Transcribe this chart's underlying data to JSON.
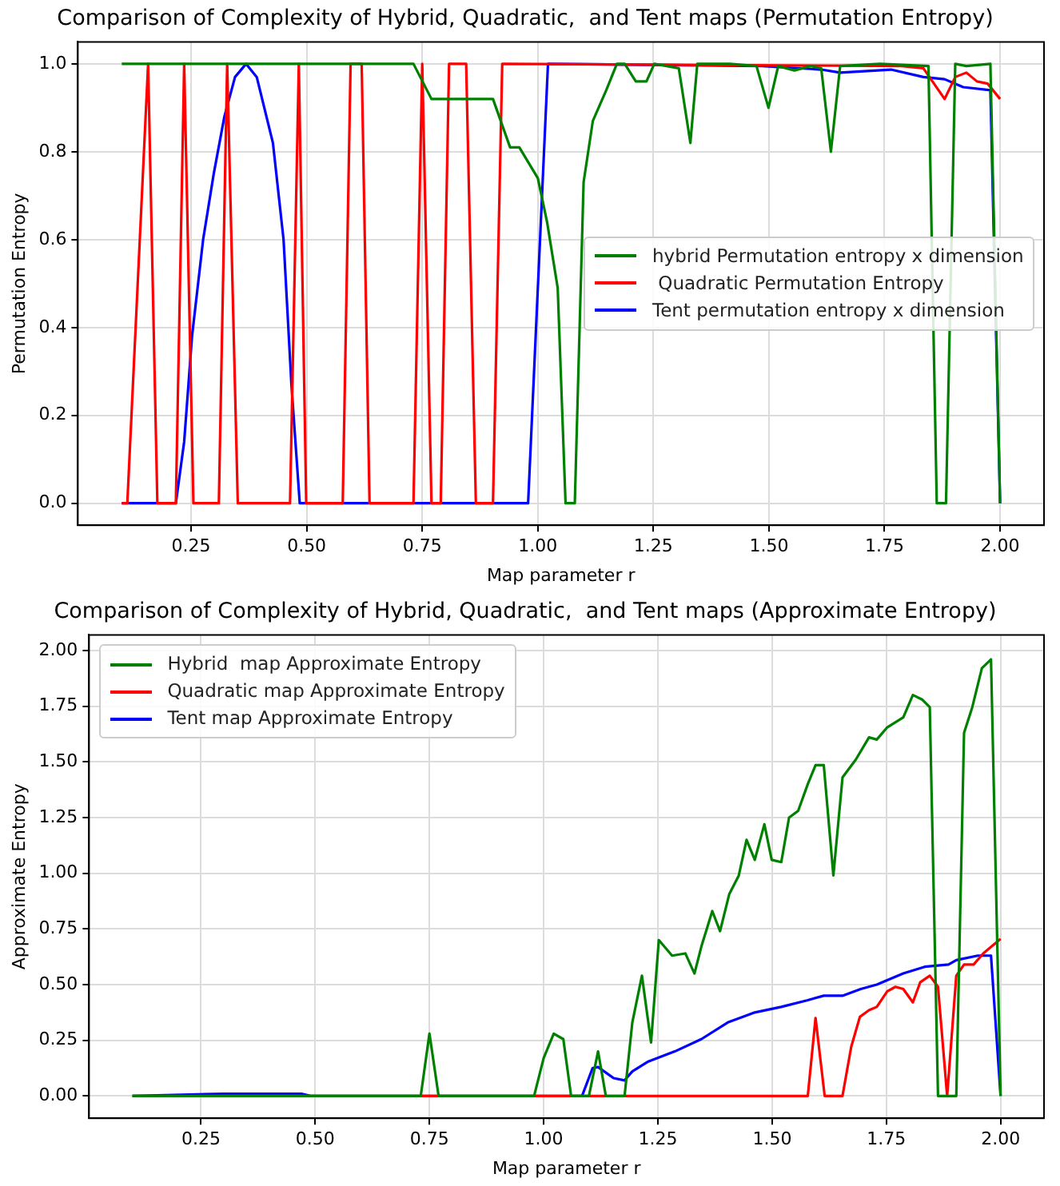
{
  "chart_data": [
    {
      "type": "line",
      "title": "Comparison of Complexity of Hybrid, Quadratic,  and Tent maps (Permutation Entropy)",
      "xlabel": "Map parameter r",
      "ylabel": "Permutation Entropy",
      "xlim": [
        0.005,
        2.095
      ],
      "xticks": [
        {
          "value": 0.25,
          "label": "0.25"
        },
        {
          "value": 0.5,
          "label": "0.50"
        },
        {
          "value": 0.75,
          "label": "0.75"
        },
        {
          "value": 1,
          "label": "1.00"
        },
        {
          "value": 1.25,
          "label": "1.25"
        },
        {
          "value": 1.5,
          "label": "1.50"
        },
        {
          "value": 1.75,
          "label": "1.75"
        },
        {
          "value": 2,
          "label": "2.00"
        }
      ],
      "ylim": [
        -0.05,
        1.05
      ],
      "yticks": [
        {
          "value": 0,
          "label": "0.0"
        },
        {
          "value": 0.2,
          "label": "0.2"
        },
        {
          "value": 0.4,
          "label": "0.4"
        },
        {
          "value": 0.6,
          "label": "0.6"
        },
        {
          "value": 0.8,
          "label": "0.8"
        },
        {
          "value": 1,
          "label": "1.0"
        }
      ],
      "grid": true,
      "legend": "center right",
      "series": [
        {
          "name": "hybrid Permutation entropy x dimension",
          "color": "#008000",
          "x": [
            0.1,
            0.731,
            0.77,
            0.903,
            0.94,
            0.96,
            1.0,
            1.02,
            1.043,
            1.06,
            1.08,
            1.099,
            1.119,
            1.148,
            1.171,
            1.188,
            1.212,
            1.235,
            1.252,
            1.305,
            1.33,
            1.345,
            1.415,
            1.473,
            1.499,
            1.52,
            1.555,
            1.59,
            1.613,
            1.634,
            1.654,
            1.74,
            1.845,
            1.863,
            1.883,
            1.903,
            1.927,
            1.979,
            2.0
          ],
          "values": [
            1.0,
            1.0,
            0.92,
            0.92,
            0.81,
            0.81,
            0.74,
            0.64,
            0.49,
            0,
            0,
            0.73,
            0.87,
            0.94,
            1.0,
            1.0,
            0.96,
            0.96,
            1.0,
            0.99,
            0.82,
            1.0,
            1.0,
            0.995,
            0.9,
            0.995,
            0.985,
            0.995,
            0.99,
            0.8,
            0.995,
            1.0,
            0.995,
            0,
            0,
            1.0,
            0.995,
            1.0,
            0
          ]
        },
        {
          "name": " Quadratic Permutation Entropy",
          "color": "#ff0000",
          "x": [
            0.1,
            0.112,
            0.157,
            0.177,
            0.217,
            0.235,
            0.255,
            0.31,
            0.328,
            0.351,
            0.464,
            0.483,
            0.499,
            0.578,
            0.595,
            0.619,
            0.636,
            0.731,
            0.75,
            0.77,
            0.79,
            0.808,
            0.845,
            0.866,
            0.903,
            0.923,
            1.787,
            1.834,
            1.88,
            1.903,
            1.927,
            1.95,
            1.973,
            2.0
          ],
          "values": [
            0,
            0,
            1,
            0,
            0,
            1,
            0,
            0,
            1,
            0,
            0,
            1,
            0,
            0,
            1,
            1,
            0,
            0,
            1,
            0,
            0,
            1,
            1,
            0,
            0,
            1,
            0.995,
            0.99,
            0.92,
            0.97,
            0.98,
            0.96,
            0.955,
            0.92
          ]
        },
        {
          "name": "Tent permutation entropy x dimension",
          "color": "#0000ff",
          "x": [
            0.1,
            0.217,
            0.235,
            0.252,
            0.276,
            0.299,
            0.322,
            0.345,
            0.369,
            0.392,
            0.427,
            0.45,
            0.467,
            0.485,
            0.979,
            1.022,
            1.485,
            1.613,
            1.654,
            1.764,
            1.834,
            1.88,
            1.92,
            1.979,
            2.0
          ],
          "values": [
            0,
            0,
            0.14,
            0.38,
            0.6,
            0.75,
            0.88,
            0.97,
            1.0,
            0.97,
            0.82,
            0.6,
            0.27,
            0,
            0,
            1.0,
            0.995,
            0.987,
            0.98,
            0.987,
            0.97,
            0.965,
            0.947,
            0.94,
            0
          ]
        }
      ]
    },
    {
      "type": "line",
      "title": "Comparison of Complexity of Hybrid, Quadratic,  and Tent maps (Approximate Entropy)",
      "xlabel": "Map parameter r",
      "ylabel": "Approximate Entropy",
      "xlim": [
        0.005,
        2.095
      ],
      "xticks": [
        {
          "value": 0.25,
          "label": "0.25"
        },
        {
          "value": 0.5,
          "label": "0.50"
        },
        {
          "value": 0.75,
          "label": "0.75"
        },
        {
          "value": 1,
          "label": "1.00"
        },
        {
          "value": 1.25,
          "label": "1.25"
        },
        {
          "value": 1.5,
          "label": "1.50"
        },
        {
          "value": 1.75,
          "label": "1.75"
        },
        {
          "value": 2,
          "label": "2.00"
        }
      ],
      "ylim": [
        -0.1,
        2.07
      ],
      "yticks": [
        {
          "value": 0,
          "label": "0.00"
        },
        {
          "value": 0.25,
          "label": "0.25"
        },
        {
          "value": 0.5,
          "label": "0.50"
        },
        {
          "value": 0.75,
          "label": "0.75"
        },
        {
          "value": 1,
          "label": "1.00"
        },
        {
          "value": 1.25,
          "label": "1.25"
        },
        {
          "value": 1.5,
          "label": "1.50"
        },
        {
          "value": 1.75,
          "label": "1.75"
        },
        {
          "value": 2,
          "label": "2.00"
        }
      ],
      "grid": true,
      "legend": "top left",
      "series": [
        {
          "name": "Hybrid  map Approximate Entropy",
          "color": "#008000",
          "x": [
            0.1,
            0.731,
            0.75,
            0.77,
            0.979,
            1.0,
            1.022,
            1.043,
            1.06,
            1.099,
            1.119,
            1.136,
            1.177,
            1.194,
            1.215,
            1.235,
            1.252,
            1.281,
            1.31,
            1.33,
            1.345,
            1.369,
            1.386,
            1.406,
            1.427,
            1.444,
            1.462,
            1.483,
            1.499,
            1.52,
            1.537,
            1.557,
            1.578,
            1.595,
            1.613,
            1.634,
            1.654,
            1.683,
            1.712,
            1.729,
            1.752,
            1.787,
            1.808,
            1.828,
            1.845,
            1.863,
            1.903,
            1.92,
            1.938,
            1.959,
            1.979,
            2.0
          ],
          "values": [
            0,
            0,
            0.28,
            0,
            0,
            0.17,
            0.28,
            0.255,
            0,
            0,
            0.2,
            0,
            0,
            0.33,
            0.54,
            0.24,
            0.7,
            0.63,
            0.64,
            0.55,
            0.67,
            0.83,
            0.74,
            0.905,
            0.99,
            1.15,
            1.06,
            1.22,
            1.06,
            1.05,
            1.25,
            1.28,
            1.4,
            1.485,
            1.485,
            0.99,
            1.43,
            1.51,
            1.61,
            1.6,
            1.655,
            1.7,
            1.8,
            1.78,
            1.745,
            0,
            0,
            1.63,
            1.745,
            1.92,
            1.96,
            0
          ]
        },
        {
          "name": "Quadratic map Approximate Entropy",
          "color": "#ff0000",
          "x": [
            0.1,
            1.578,
            1.595,
            1.615,
            1.654,
            1.673,
            1.692,
            1.712,
            1.729,
            1.752,
            1.77,
            1.787,
            1.808,
            1.824,
            1.845,
            1.863,
            1.883,
            1.903,
            1.92,
            1.941,
            1.962,
            2.0
          ],
          "values": [
            0,
            0,
            0.35,
            0,
            0,
            0.22,
            0.355,
            0.385,
            0.4,
            0.47,
            0.49,
            0.48,
            0.42,
            0.51,
            0.54,
            0.49,
            0,
            0.54,
            0.59,
            0.59,
            0.64,
            0.705
          ]
        },
        {
          "name": "Tent map Approximate Entropy",
          "color": "#0000ff",
          "x": [
            0.1,
            0.3,
            0.47,
            0.49,
            1.084,
            1.107,
            1.119,
            1.153,
            1.177,
            1.194,
            1.229,
            1.287,
            1.345,
            1.403,
            1.462,
            1.52,
            1.578,
            1.613,
            1.654,
            1.694,
            1.729,
            1.787,
            1.834,
            1.886,
            1.903,
            1.95,
            1.979,
            2.0
          ],
          "values": [
            0,
            0.01,
            0.01,
            0,
            0,
            0.125,
            0.13,
            0.08,
            0.07,
            0.11,
            0.155,
            0.2,
            0.255,
            0.33,
            0.375,
            0.4,
            0.43,
            0.45,
            0.45,
            0.48,
            0.5,
            0.55,
            0.58,
            0.59,
            0.61,
            0.63,
            0.63,
            0
          ]
        }
      ]
    }
  ]
}
